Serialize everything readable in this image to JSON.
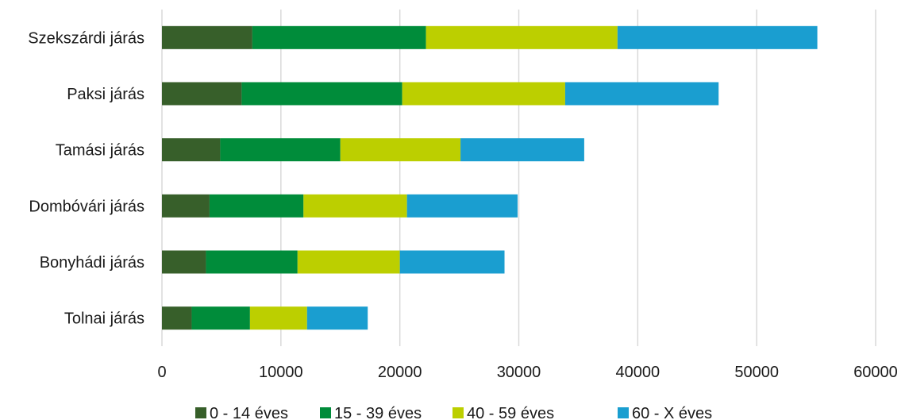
{
  "chart_data": {
    "type": "bar",
    "orientation": "horizontal",
    "stacked": true,
    "categories": [
      "Szekszárdi járás",
      "Paksi járás",
      "Tamási járás",
      "Dombóvári járás",
      "Bonyhádi járás",
      "Tolnai járás"
    ],
    "series": [
      {
        "name": "0 - 14 éves",
        "color": "#375f2a",
        "values": [
          7600,
          6700,
          4900,
          4000,
          3700,
          2500
        ]
      },
      {
        "name": "15 - 39 éves",
        "color": "#008c3a",
        "values": [
          14600,
          13500,
          10100,
          7900,
          7700,
          4900
        ]
      },
      {
        "name": "40 - 59 éves",
        "color": "#bccf00",
        "values": [
          16100,
          13700,
          10100,
          8700,
          8600,
          4800
        ]
      },
      {
        "name": "60 - X  éves",
        "color": "#1a9ed0",
        "values": [
          16800,
          12900,
          10400,
          9300,
          8800,
          5100
        ]
      }
    ],
    "xlim": [
      0,
      60000
    ],
    "xticks": [
      "0",
      "10000",
      "20000",
      "30000",
      "40000",
      "50000",
      "60000"
    ],
    "grid": "vertical",
    "legend_position": "bottom",
    "title": "",
    "xlabel": "",
    "ylabel": ""
  }
}
